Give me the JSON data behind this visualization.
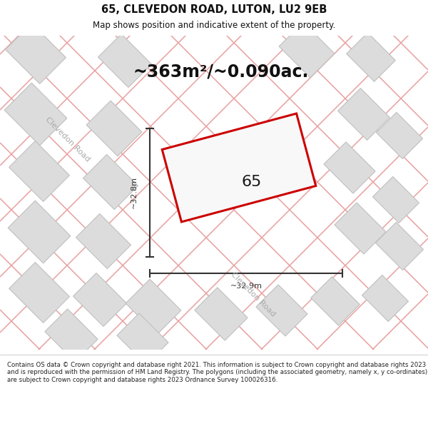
{
  "title": "65, CLEVEDON ROAD, LUTON, LU2 9EB",
  "subtitle": "Map shows position and indicative extent of the property.",
  "area_text": "~363m²/~0.090ac.",
  "property_label": "65",
  "dim_vertical": "~32.8m",
  "dim_horizontal": "~32.9m",
  "street_label_nw": "Clevedon Road",
  "street_label_se": "Clevedon Road",
  "footer": "Contains OS data © Crown copyright and database right 2021. This information is subject to Crown copyright and database rights 2023 and is reproduced with the permission of HM Land Registry. The polygons (including the associated geometry, namely x, y co-ordinates) are subject to Crown copyright and database rights 2023 Ordnance Survey 100026316.",
  "map_bg": "#f0efee",
  "bld_fill": "#dcdcdc",
  "bld_edge": "#c0c0c0",
  "road_color": "#e8a0a0",
  "property_edge": "#cc0000",
  "property_fill": "#f8f8f8",
  "dim_color": "#333333",
  "title_color": "#111111",
  "street_color": "#aaaaaa",
  "title_fontsize": 10.5,
  "subtitle_fontsize": 8.5,
  "area_fontsize": 17,
  "label_fontsize": 16,
  "dim_fontsize": 8,
  "street_fontsize": 8,
  "footer_fontsize": 6.2
}
